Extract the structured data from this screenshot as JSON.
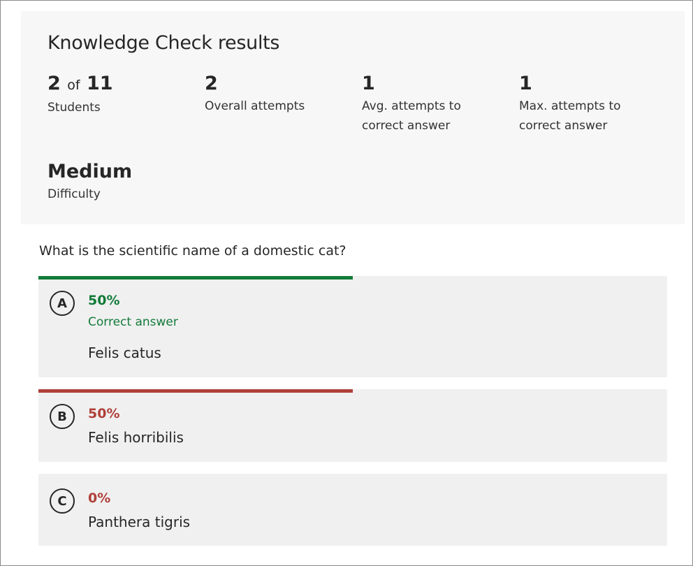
{
  "title": "Knowledge Check results",
  "stats": [
    {
      "value": "2",
      "of_word": "of",
      "total": "11",
      "label": "Students"
    },
    {
      "value": "2",
      "label": "Overall attempts"
    },
    {
      "value": "1",
      "label": "Avg. attempts to correct answer"
    },
    {
      "value": "1",
      "label": "Max. attempts to correct answer"
    }
  ],
  "difficulty": {
    "value": "Medium",
    "label": "Difficulty"
  },
  "question": "What is the scientific name of a domestic cat?",
  "colors": {
    "correct": "#137b3a",
    "incorrect": "#b0403a"
  },
  "options": [
    {
      "letter": "A",
      "percent": "50%",
      "fraction": 0.5,
      "correct": true,
      "correct_label": "Correct answer",
      "text": "Felis catus"
    },
    {
      "letter": "B",
      "percent": "50%",
      "fraction": 0.5,
      "correct": false,
      "text": "Felis horribilis"
    },
    {
      "letter": "C",
      "percent": "0%",
      "fraction": 0,
      "correct": false,
      "text": "Panthera tigris"
    }
  ]
}
